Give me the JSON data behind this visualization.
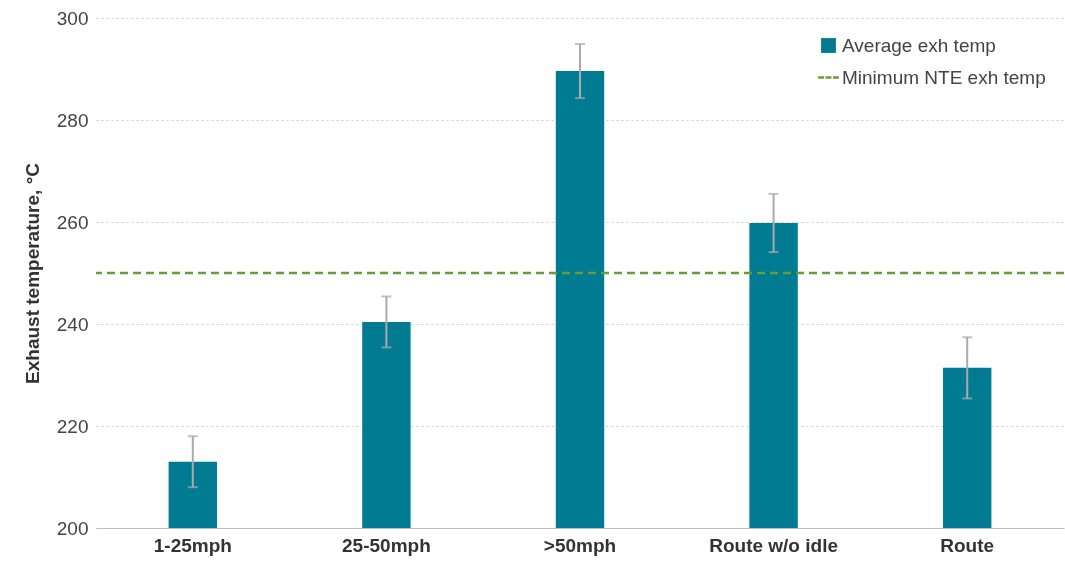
{
  "chart_data": {
    "type": "bar",
    "ylabel": "Exhaust temperature, °C",
    "categories": [
      "1-25mph",
      "25-50mph",
      ">50mph",
      "Route w/o idle",
      "Route"
    ],
    "series": [
      {
        "name": "Average exh temp",
        "color": "#007b91",
        "values": [
          213,
          240.4,
          289.6,
          259.8,
          231.4
        ],
        "errors": [
          5,
          5,
          5.3,
          5.7,
          6
        ]
      }
    ],
    "ylim": [
      200,
      300
    ],
    "yticks": [
      200,
      220,
      240,
      260,
      280,
      300
    ],
    "grid": "y",
    "legend": "top right",
    "ref_lines": [
      {
        "axis": "y",
        "value": 250,
        "label": "Minimum NTE exh temp",
        "color": "#6a9a3a",
        "line_style": "dashed"
      }
    ]
  }
}
